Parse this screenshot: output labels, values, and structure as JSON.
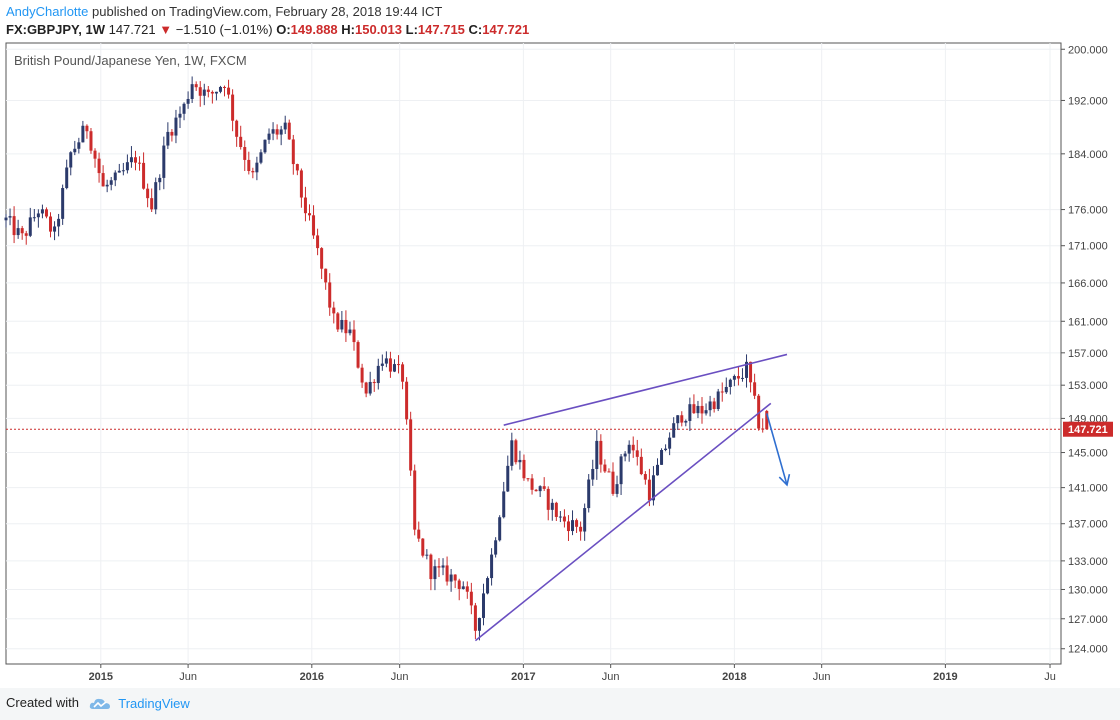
{
  "header": {
    "author": "AndyCharlotte",
    "published_text": "published on TradingView.com, February 28, 2018 19:44 ICT",
    "symbol_line": "FX:GBPJPY, 1W",
    "last": "147.721",
    "change": "−1.510 (−1.01%)",
    "o_label": "O:",
    "o": "149.888",
    "h_label": "H:",
    "h": "150.013",
    "l_label": "L:",
    "l": "147.715",
    "c_label": "C:",
    "c": "147.721"
  },
  "footer": {
    "created_with": "Created with",
    "brand": "TradingView"
  },
  "colors": {
    "up": "#2b3a6b",
    "down": "#cc2b2b",
    "trendline": "#6a4fc1",
    "arrow": "#2f6fd0",
    "price_line": "#cc2b2b",
    "price_tag_bg": "#cc2b2b"
  },
  "chart_data": {
    "type": "candlestick",
    "title": "British Pound/Japanese Yen, 1W, FXCM",
    "y_ticks": [
      "200.000",
      "192.000",
      "184.000",
      "176.000",
      "171.000",
      "166.000",
      "161.000",
      "157.000",
      "153.000",
      "149.000",
      "145.000",
      "141.000",
      "137.000",
      "133.000",
      "130.000",
      "127.000",
      "124.000"
    ],
    "y_log": true,
    "ylim": [
      122.5,
      201.0
    ],
    "x_ticks": [
      "2015",
      "Jun",
      "2016",
      "Jun",
      "2017",
      "Jun",
      "2018",
      "Jun",
      "2019",
      "Ju"
    ],
    "x_range": [
      "2014-07-21",
      "2019-07-20"
    ],
    "last_price": 147.721,
    "last_price_label": "147.721",
    "approx_closes": [
      [
        "2014-07-21",
        174.5
      ],
      [
        "2014-08-18",
        172.0
      ],
      [
        "2014-09-15",
        176.0
      ],
      [
        "2014-10-13",
        172.5
      ],
      [
        "2014-11-10",
        184.0
      ],
      [
        "2014-12-08",
        188.0
      ],
      [
        "2015-01-05",
        179.0
      ],
      [
        "2015-02-02",
        180.5
      ],
      [
        "2015-03-02",
        183.5
      ],
      [
        "2015-03-30",
        176.5
      ],
      [
        "2015-04-27",
        187.0
      ],
      [
        "2015-05-25",
        191.0
      ],
      [
        "2015-06-08",
        195.0
      ],
      [
        "2015-07-06",
        192.5
      ],
      [
        "2015-08-03",
        195.0
      ],
      [
        "2015-08-24",
        187.0
      ],
      [
        "2015-09-21",
        180.5
      ],
      [
        "2015-10-19",
        187.0
      ],
      [
        "2015-11-16",
        187.5
      ],
      [
        "2015-12-14",
        178.0
      ],
      [
        "2016-01-11",
        170.0
      ],
      [
        "2016-02-08",
        161.0
      ],
      [
        "2016-03-07",
        159.5
      ],
      [
        "2016-04-04",
        152.0
      ],
      [
        "2016-05-02",
        156.5
      ],
      [
        "2016-06-06",
        154.0
      ],
      [
        "2016-06-27",
        136.0
      ],
      [
        "2016-07-25",
        132.0
      ],
      [
        "2016-08-22",
        131.5
      ],
      [
        "2016-09-19",
        130.5
      ],
      [
        "2016-10-10",
        126.0
      ],
      [
        "2016-11-07",
        133.5
      ],
      [
        "2016-11-28",
        141.0
      ],
      [
        "2016-12-12",
        146.0
      ],
      [
        "2017-01-09",
        141.5
      ],
      [
        "2017-02-06",
        140.0
      ],
      [
        "2017-03-06",
        137.5
      ],
      [
        "2017-04-10",
        136.5
      ],
      [
        "2017-05-08",
        145.5
      ],
      [
        "2017-06-05",
        141.0
      ],
      [
        "2017-07-03",
        146.5
      ],
      [
        "2017-08-07",
        140.5
      ],
      [
        "2017-09-11",
        147.0
      ],
      [
        "2017-10-02",
        149.5
      ],
      [
        "2017-11-06",
        150.0
      ],
      [
        "2017-12-04",
        151.5
      ],
      [
        "2018-01-01",
        153.5
      ],
      [
        "2018-01-22",
        155.0
      ],
      [
        "2018-02-12",
        148.5
      ],
      [
        "2018-02-26",
        147.721
      ]
    ],
    "annotations": [
      {
        "type": "trendline",
        "from": [
          "2016-10-10",
          124.8
        ],
        "to": [
          "2018-03-05",
          150.8
        ]
      },
      {
        "type": "trendline",
        "from": [
          "2016-11-28",
          148.2
        ],
        "to": [
          "2018-04-02",
          156.8
        ]
      },
      {
        "type": "arrow",
        "from": [
          "2018-02-26",
          149.6
        ],
        "to": [
          "2018-04-02",
          141.3
        ]
      }
    ]
  }
}
